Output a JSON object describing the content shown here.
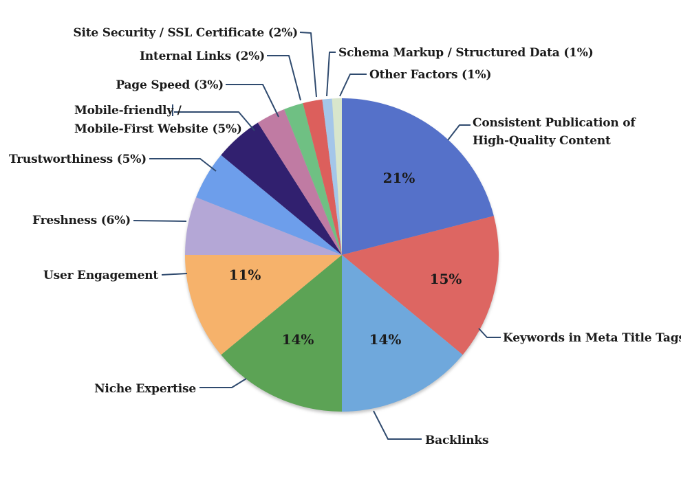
{
  "chart_data": {
    "type": "pie",
    "unit": "%",
    "start_angle": "12-oclock-clockwise",
    "background_color": "#ffffff",
    "leader_line_color": "#2f4a6e",
    "label_text_color": "#1b1b1b",
    "slices": [
      {
        "label": "Consistent Publication of High-Quality Content",
        "value": 21,
        "color": "#5571c9",
        "inside_label": "21%",
        "callout_lines": [
          "Consistent Publication of",
          "High-Quality Content"
        ]
      },
      {
        "label": "Keywords in Meta Title Tags",
        "value": 15,
        "color": "#dd6662",
        "inside_label": "15%",
        "callout_lines": [
          "Keywords in Meta Title Tags"
        ]
      },
      {
        "label": "Backlinks",
        "value": 14,
        "color": "#6fa8dc",
        "inside_label": "14%",
        "callout_lines": [
          "Backlinks"
        ]
      },
      {
        "label": "Niche Expertise",
        "value": 14,
        "color": "#5ca355",
        "inside_label": "14%",
        "callout_lines": [
          "Niche Expertise"
        ]
      },
      {
        "label": "User Engagement",
        "value": 11,
        "color": "#f6b26b",
        "inside_label": "11%",
        "callout_lines": [
          "User Engagement"
        ]
      },
      {
        "label": "Freshness",
        "value": 6,
        "color": "#b4a7d6",
        "callout_lines": [
          "Freshness (6%)"
        ]
      },
      {
        "label": "Trustworthiness",
        "value": 5,
        "color": "#6d9eeb",
        "callout_lines": [
          "Trustworthiness (5%)"
        ]
      },
      {
        "label": "Mobile-friendly / Mobile-First Website",
        "value": 5,
        "color": "#31206f",
        "callout_lines": [
          "Mobile-friendly /",
          "Mobile-First Website (5%)"
        ]
      },
      {
        "label": "Page Speed",
        "value": 3,
        "color": "#c07ba3",
        "callout_lines": [
          "Page Speed (3%)"
        ]
      },
      {
        "label": "Internal Links",
        "value": 2,
        "color": "#6fc083",
        "callout_lines": [
          "Internal Links (2%)"
        ]
      },
      {
        "label": "Site Security / SSL Certificate",
        "value": 2,
        "color": "#dc5f5c",
        "callout_lines": [
          "Site Security / SSL Certificate (2%)"
        ]
      },
      {
        "label": "Schema Markup / Structured Data",
        "value": 1,
        "color": "#a4c6e9",
        "callout_lines": [
          "Schema Markup / Structured Data (1%)"
        ]
      },
      {
        "label": "Other Factors",
        "value": 1,
        "color": "#d8e6cc",
        "callout_lines": [
          "Other Factors (1%)"
        ]
      }
    ]
  }
}
